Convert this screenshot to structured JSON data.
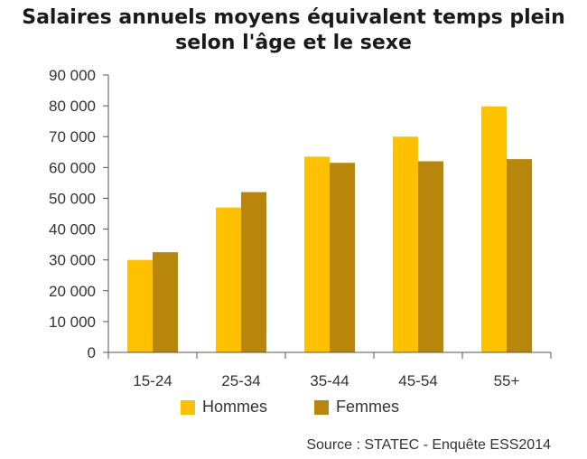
{
  "chart_data": {
    "type": "bar",
    "title_lines": [
      "Salaires annuels moyens équivalent temps plein",
      "selon l'âge et le sexe"
    ],
    "categories": [
      "15-24",
      "25-34",
      "35-44",
      "45-54",
      "55+"
    ],
    "series": [
      {
        "name": "Hommes",
        "color": "#FFC000",
        "values": [
          30000,
          47000,
          63500,
          70000,
          79800
        ]
      },
      {
        "name": "Femmes",
        "color": "#B8860B",
        "values": [
          32500,
          52000,
          61500,
          62000,
          62700
        ]
      }
    ],
    "ylim": [
      0,
      90000
    ],
    "yticks": [
      0,
      10000,
      20000,
      30000,
      40000,
      50000,
      60000,
      70000,
      80000,
      90000
    ],
    "ytick_labels": [
      "0",
      "10 000",
      "20 000",
      "30 000",
      "40 000",
      "50 000",
      "60 000",
      "70 000",
      "80 000",
      "90 000"
    ],
    "grid": false,
    "legend_position": "bottom"
  },
  "source": "Source : STATEC - Enquête ESS2014"
}
